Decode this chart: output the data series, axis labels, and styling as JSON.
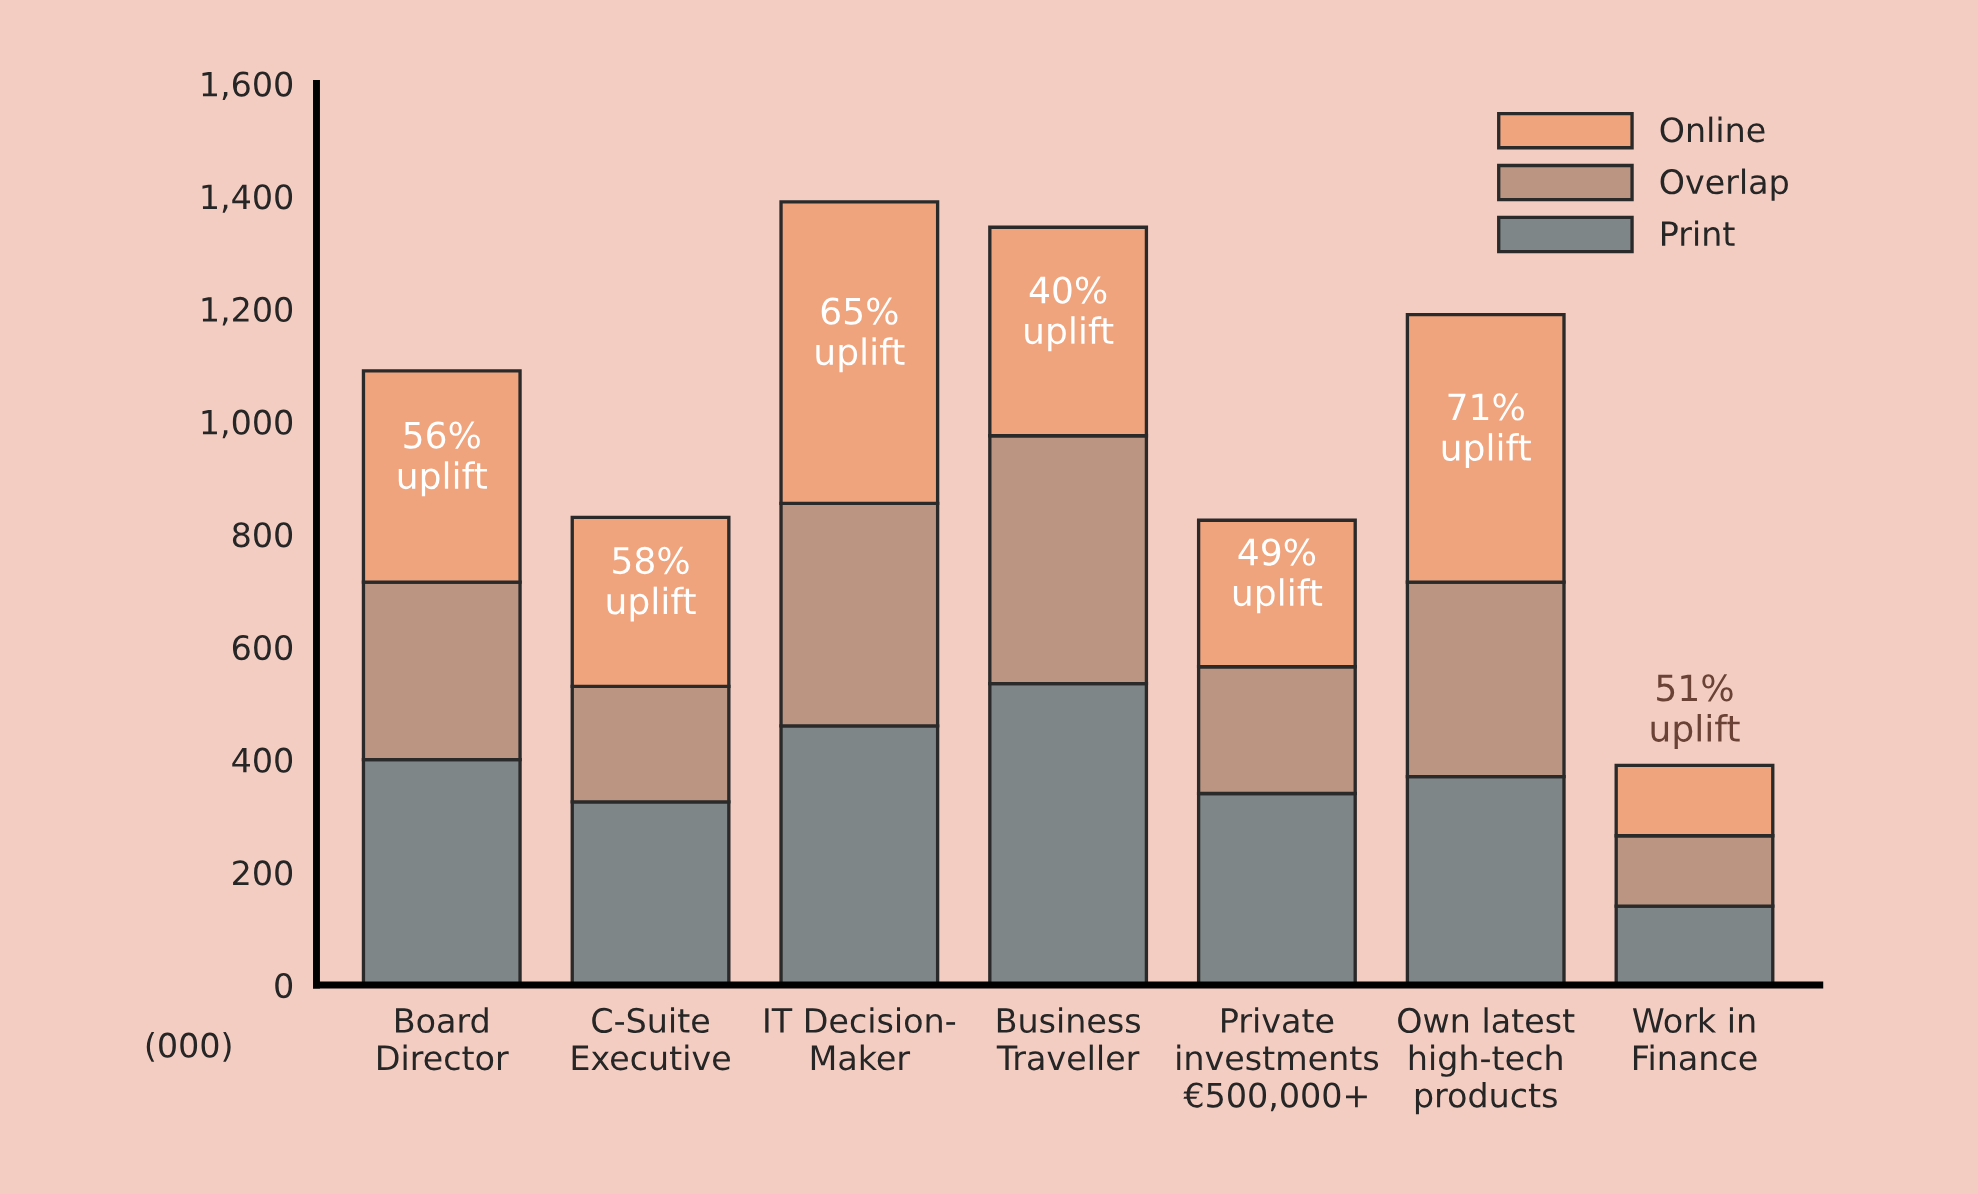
{
  "chart_data": {
    "type": "bar",
    "stacked": true,
    "categories": [
      "Board\nDirector",
      "C-Suite\nExecutive",
      "IT Decision-\nMaker",
      "Business\nTraveller",
      "Private\ninvestments\n€500,000+",
      "Own latest\nhigh-tech\nproducts",
      "Work in\nFinance"
    ],
    "series": [
      {
        "name": "Print",
        "color": "#7f8687",
        "values": [
          400,
          325,
          460,
          535,
          340,
          370,
          140
        ]
      },
      {
        "name": "Overlap",
        "color": "#bb9582",
        "values": [
          315,
          205,
          395,
          440,
          225,
          345,
          125
        ]
      },
      {
        "name": "Online",
        "color": "#f0a47e",
        "values": [
          375,
          300,
          535,
          370,
          260,
          475,
          125
        ]
      }
    ],
    "ylim": [
      0,
      1600
    ],
    "yticks": [
      0,
      200,
      400,
      600,
      800,
      {
        "value": 1000,
        "label": "1,000"
      },
      {
        "value": 1200,
        "label": "1,200"
      },
      {
        "value": 1400,
        "label": "1,400"
      },
      {
        "value": 1600,
        "label": "1,600"
      }
    ],
    "annotations": [
      "56%\nuplift",
      "58%\nuplift",
      "65%\nuplift",
      "40%\nuplift",
      "49%\nuplift",
      "71%\nuplift",
      "51%\nuplift",
      "(000)"
    ],
    "legend": "top right",
    "grid": false
  }
}
